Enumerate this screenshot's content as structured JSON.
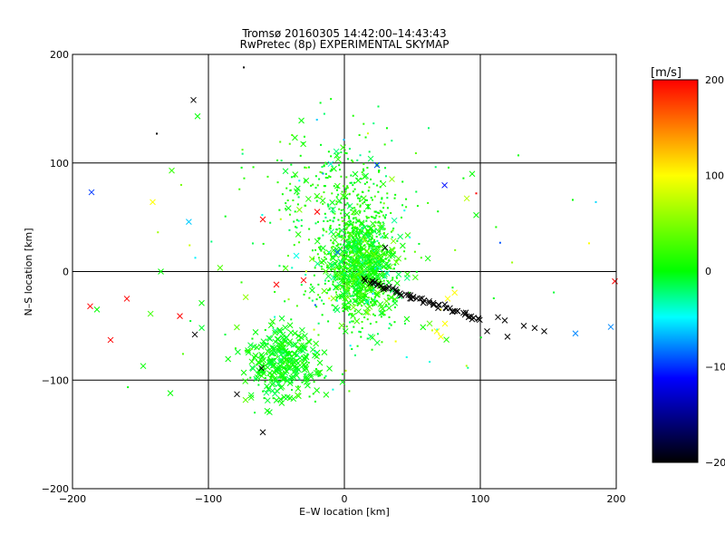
{
  "chart_data": {
    "type": "scatter",
    "title": "Tromsø 20160305 14:42:00–14:43:43",
    "subtitle": "RwPretec (8p) EXPERIMENTAL SKYMAP",
    "xlabel": "E–W location [km]",
    "ylabel": "N–S location [km]",
    "xlim": [
      -200,
      200
    ],
    "ylim": [
      -200,
      200
    ],
    "xticks": [
      "−200",
      "−100",
      "0",
      "100",
      "200"
    ],
    "yticks": [
      "−200",
      "−100",
      "0",
      "100",
      "200"
    ],
    "grid": true,
    "colorbar": {
      "label": "[m/s]",
      "range": [
        -200,
        200
      ],
      "ticks": [
        "200",
        "100",
        "0",
        "−100",
        "−200"
      ],
      "colors": [
        "#ff0000",
        "#ffff00",
        "#00ff00",
        "#00ffff",
        "#0000ff",
        "#000000"
      ]
    },
    "point_groups": [
      {
        "name": "main-green-cloud",
        "center": [
          10,
          10
        ],
        "spread": [
          22,
          45
        ],
        "count": 900,
        "value_mean": 5,
        "value_spread": 15,
        "marker": "dot"
      },
      {
        "name": "north-scatter",
        "center": [
          -5,
          80
        ],
        "spread": [
          45,
          50
        ],
        "count": 220,
        "value_mean": 5,
        "value_spread": 15,
        "marker": "dot"
      },
      {
        "name": "southwest-arm",
        "center": [
          -45,
          -85
        ],
        "spread": [
          22,
          28
        ],
        "count": 320,
        "value_mean": 0,
        "value_spread": 10,
        "marker": "x"
      },
      {
        "name": "central-x",
        "center": [
          15,
          0
        ],
        "spread": [
          25,
          35
        ],
        "count": 260,
        "value_mean": 10,
        "value_spread": 20,
        "marker": "x"
      },
      {
        "name": "wide-scatter",
        "center": [
          0,
          0
        ],
        "spread": [
          110,
          90
        ],
        "count": 140,
        "value_mean": 0,
        "value_spread": 40,
        "marker": "dot"
      }
    ],
    "black_trail": {
      "from": [
        15,
        -8
      ],
      "to": [
        100,
        -45
      ],
      "count": 60,
      "value": -200
    },
    "outliers": [
      {
        "x": -111,
        "y": 158,
        "v": -200,
        "m": "x"
      },
      {
        "x": -108,
        "y": 143,
        "v": 0,
        "m": "x"
      },
      {
        "x": -74,
        "y": 188,
        "v": -200,
        "m": "dot"
      },
      {
        "x": -138,
        "y": 127,
        "v": -200,
        "m": "dot"
      },
      {
        "x": -127,
        "y": 93,
        "v": 20,
        "m": "x"
      },
      {
        "x": -186,
        "y": 73,
        "v": -100,
        "m": "x"
      },
      {
        "x": -141,
        "y": 64,
        "v": 100,
        "m": "x"
      },
      {
        "x": -160,
        "y": -25,
        "v": 200,
        "m": "x"
      },
      {
        "x": -187,
        "y": -32,
        "v": 200,
        "m": "x"
      },
      {
        "x": -172,
        "y": -63,
        "v": 200,
        "m": "x"
      },
      {
        "x": -182,
        "y": -35,
        "v": 0,
        "m": "x"
      },
      {
        "x": -121,
        "y": -41,
        "v": 200,
        "m": "x"
      },
      {
        "x": -110,
        "y": -58,
        "v": -200,
        "m": "x"
      },
      {
        "x": -148,
        "y": -87,
        "v": 0,
        "m": "x"
      },
      {
        "x": -128,
        "y": -112,
        "v": 0,
        "m": "x"
      },
      {
        "x": -60,
        "y": -148,
        "v": -200,
        "m": "x"
      },
      {
        "x": -61,
        "y": -89,
        "v": -200,
        "m": "x"
      },
      {
        "x": -79,
        "y": -113,
        "v": -200,
        "m": "x"
      },
      {
        "x": 30,
        "y": 22,
        "v": -200,
        "m": "x"
      },
      {
        "x": 68,
        "y": -55,
        "v": 100,
        "m": "x"
      },
      {
        "x": 71,
        "y": -60,
        "v": 100,
        "m": "x"
      },
      {
        "x": 74,
        "y": -48,
        "v": 100,
        "m": "x"
      },
      {
        "x": 76,
        "y": -25,
        "v": 100,
        "m": "x"
      },
      {
        "x": 105,
        "y": -55,
        "v": -200,
        "m": "x"
      },
      {
        "x": 113,
        "y": -42,
        "v": -200,
        "m": "x"
      },
      {
        "x": 118,
        "y": -45,
        "v": -200,
        "m": "x"
      },
      {
        "x": 120,
        "y": -60,
        "v": -200,
        "m": "x"
      },
      {
        "x": 132,
        "y": -50,
        "v": -200,
        "m": "x"
      },
      {
        "x": 140,
        "y": -52,
        "v": -200,
        "m": "x"
      },
      {
        "x": 147,
        "y": -55,
        "v": -200,
        "m": "x"
      },
      {
        "x": 170,
        "y": -57,
        "v": -80,
        "m": "x"
      },
      {
        "x": 196,
        "y": -51,
        "v": -80,
        "m": "x"
      },
      {
        "x": 199,
        "y": -9,
        "v": 200,
        "m": "x"
      },
      {
        "x": 94,
        "y": 90,
        "v": 0,
        "m": "x"
      },
      {
        "x": 97,
        "y": 52,
        "v": 0,
        "m": "x"
      },
      {
        "x": 24,
        "y": 98,
        "v": -100,
        "m": "x"
      },
      {
        "x": 97,
        "y": 72,
        "v": 200,
        "m": "dot"
      },
      {
        "x": 168,
        "y": 66,
        "v": 0,
        "m": "dot"
      },
      {
        "x": 180,
        "y": 26,
        "v": 100,
        "m": "dot"
      },
      {
        "x": 185,
        "y": 64,
        "v": -60,
        "m": "dot"
      },
      {
        "x": 128,
        "y": 107,
        "v": 0,
        "m": "dot"
      },
      {
        "x": -20,
        "y": 55,
        "v": 200,
        "m": "x"
      },
      {
        "x": -60,
        "y": 48,
        "v": 200,
        "m": "x"
      },
      {
        "x": -50,
        "y": -12,
        "v": 200,
        "m": "x"
      },
      {
        "x": -30,
        "y": -8,
        "v": 200,
        "m": "x"
      },
      {
        "x": -105,
        "y": -29,
        "v": 0,
        "m": "x"
      },
      {
        "x": -135,
        "y": 0,
        "v": 0,
        "m": "x"
      }
    ]
  }
}
